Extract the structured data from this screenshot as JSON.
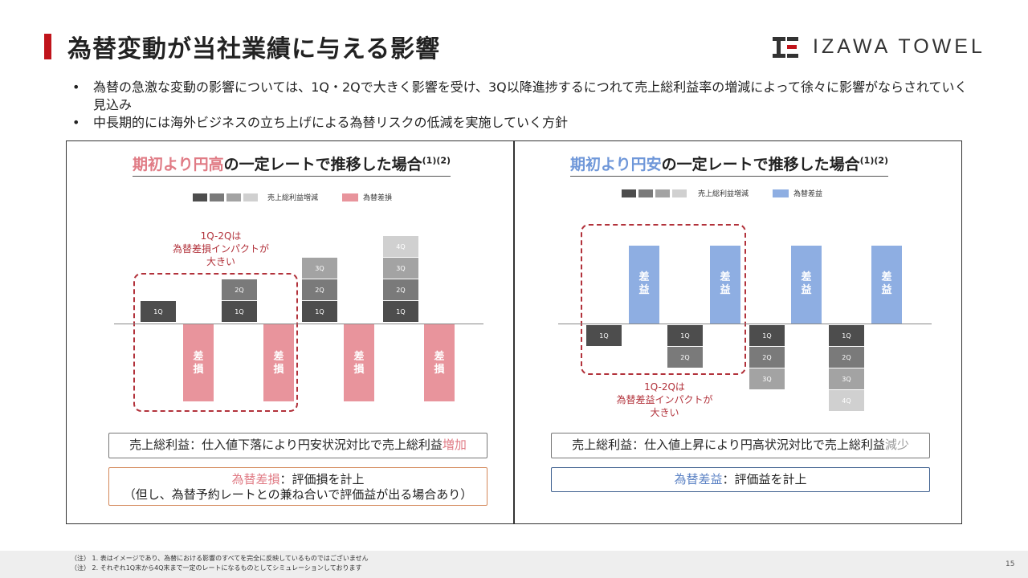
{
  "header": {
    "title": "為替変動が当社業績に与える影響",
    "logo_text": "IZAWA TOWEL",
    "accent_color": "#c0141b"
  },
  "bullets": [
    "為替の急激な変動の影響については、1Q・2Qで大きく影響を受け、3Q以降進捗するにつれて売上総利益率の増減によって徐々に影響がならされていく見込み",
    "中長期的には海外ビジネスの立ち上げによる為替リスクの低減を実施していく方針"
  ],
  "panels": {
    "left": {
      "title_highlight": "期初より円高",
      "title_rest": "の一定レートで推移した場合",
      "title_sup": "(1)(2)",
      "legend_gross": "売上総利益増減",
      "legend_fx": "為替差損",
      "annotation": [
        "1Q-2Qは",
        "為替差損インパクトが",
        "大きい"
      ],
      "fx_bar_label": [
        "差",
        "損"
      ],
      "box1_main": "売上総利益：仕入値下落により円安状況対比で売上総利益",
      "box1_tail": "増加",
      "box2_highlight": "為替差損",
      "box2_rest": "：評価損を計上",
      "box2_line2": "（但し、為替予約レートとの兼ね合いで評価益が出る場合あり）",
      "fx_color": "#e8949c"
    },
    "right": {
      "title_highlight": "期初より円安",
      "title_rest": "の一定レートで推移した場合",
      "title_sup": "(1)(2)",
      "legend_gross": "売上総利益増減",
      "legend_fx": "為替差益",
      "annotation": [
        "1Q-2Qは",
        "為替差益インパクトが",
        "大きい"
      ],
      "fx_bar_label": [
        "差",
        "益"
      ],
      "box1_main": "売上総利益：仕入値上昇により円高状況対比で売上総利益",
      "box1_tail": "減少",
      "box2_highlight": "為替差益",
      "box2_rest": "：評価益を計上",
      "fx_color": "#8eaee2"
    }
  },
  "quarters": [
    "1Q",
    "2Q",
    "3Q",
    "4Q"
  ],
  "quarter_colors": [
    "#4d4d4d",
    "#7a7a7a",
    "#a3a3a3",
    "#d0d0d0"
  ],
  "footnotes": [
    "（注） 1. 表はイメージであり、為替における影響のすべてを完全に反映しているものではございません",
    "（注） 2. それぞれ1Q末から4Q末まで一定のレートになるものとしてシミュレーションしております"
  ],
  "page_number": "15"
}
